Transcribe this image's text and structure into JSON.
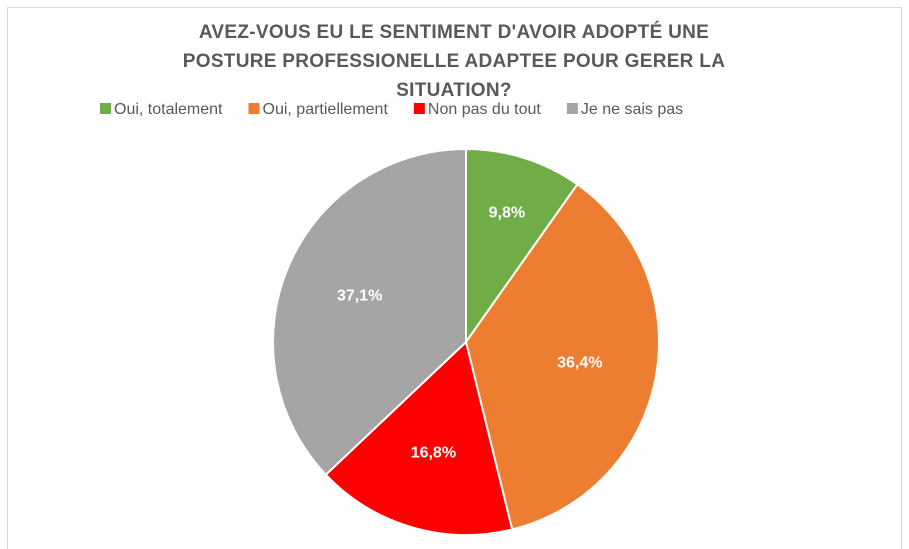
{
  "chart_data": {
    "type": "pie",
    "title": "AVEZ-VOUS EU LE SENTIMENT D'AVOIR ADOPTÉ UNE POSTURE PROFESSIONELLE ADAPTEE POUR GERER LA SITUATION?",
    "categories": [
      "Oui, totalement",
      "Oui, partiellement",
      "Non pas du tout",
      "Je ne sais pas"
    ],
    "values": [
      9.8,
      36.4,
      16.8,
      37.1
    ],
    "value_labels": [
      "9,8%",
      "36,4%",
      "16,8%",
      "37,1%"
    ],
    "colors": [
      "#70ad47",
      "#ed7d31",
      "#ff0000",
      "#a5a5a5"
    ],
    "legend": "top"
  }
}
